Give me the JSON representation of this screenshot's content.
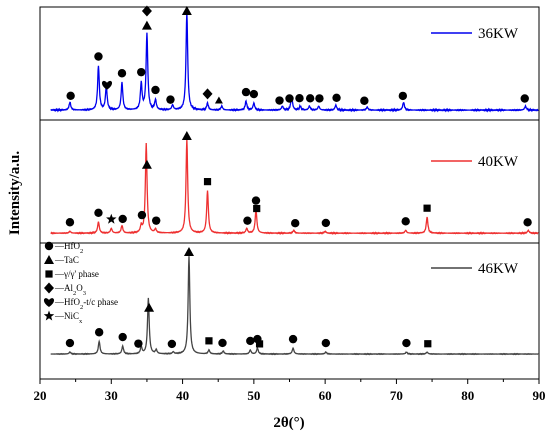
{
  "chart_data": {
    "type": "line",
    "title": "",
    "xlabel": "2θ(°)",
    "ylabel": "Intensity/a.u.",
    "xlim": [
      20,
      90
    ],
    "xticks": [
      "20",
      "30",
      "40",
      "50",
      "60",
      "70",
      "80",
      "90"
    ],
    "xtick_values": [
      20,
      30,
      40,
      50,
      60,
      70,
      80,
      90
    ],
    "yticks": false,
    "grid": false,
    "legend_position": "top-right per panel",
    "series": [
      {
        "name": "36KW",
        "color": "#0000ee",
        "baseline": 0.05,
        "peaks": [
          [
            24.2,
            0.08
          ],
          [
            28.2,
            0.45
          ],
          [
            29.3,
            0.24
          ],
          [
            31.5,
            0.28
          ],
          [
            34.2,
            0.27
          ],
          [
            35.0,
            0.78
          ],
          [
            36.2,
            0.1
          ],
          [
            38.6,
            0.05
          ],
          [
            40.6,
            1.0
          ],
          [
            43.5,
            0.07
          ],
          [
            45.5,
            0.04
          ],
          [
            48.9,
            0.09
          ],
          [
            50.0,
            0.07
          ],
          [
            54.0,
            0.04
          ],
          [
            55.3,
            0.14
          ],
          [
            56.5,
            0.04
          ],
          [
            57.8,
            0.04
          ],
          [
            59.1,
            0.04
          ],
          [
            61.5,
            0.05
          ],
          [
            65.9,
            0.03
          ],
          [
            71.0,
            0.08
          ],
          [
            88.1,
            0.04
          ]
        ]
      },
      {
        "name": "40KW",
        "color": "#ee3030",
        "baseline": 0.03,
        "peaks": [
          [
            24.2,
            0.02
          ],
          [
            28.2,
            0.12
          ],
          [
            30.0,
            0.05
          ],
          [
            31.5,
            0.08
          ],
          [
            34.2,
            0.07
          ],
          [
            34.9,
            0.95
          ],
          [
            36.2,
            0.04
          ],
          [
            40.6,
            1.0
          ],
          [
            43.5,
            0.45
          ],
          [
            49.0,
            0.05
          ],
          [
            50.3,
            0.25
          ],
          [
            55.6,
            0.03
          ],
          [
            60.0,
            0.02
          ],
          [
            71.3,
            0.03
          ],
          [
            74.3,
            0.17
          ],
          [
            88.5,
            0.03
          ]
        ]
      },
      {
        "name": "46KW",
        "color": "#444444",
        "baseline": 0.02,
        "peaks": [
          [
            24.2,
            0.02
          ],
          [
            28.3,
            0.13
          ],
          [
            31.6,
            0.08
          ],
          [
            34.2,
            0.07
          ],
          [
            35.2,
            0.57
          ],
          [
            36.3,
            0.04
          ],
          [
            38.7,
            0.02
          ],
          [
            40.9,
            1.0
          ],
          [
            43.7,
            0.04
          ],
          [
            45.7,
            0.03
          ],
          [
            49.5,
            0.04
          ],
          [
            50.5,
            0.06
          ],
          [
            55.5,
            0.06
          ],
          [
            60.1,
            0.02
          ],
          [
            71.4,
            0.02
          ],
          [
            74.3,
            0.02
          ]
        ]
      }
    ],
    "markers": [
      {
        "panel": 0,
        "symbol": "circle",
        "x": [
          24.3,
          28.2,
          31.5,
          34.2,
          36.2,
          38.3,
          48.9,
          50.0,
          53.6,
          55.0,
          56.4,
          57.9,
          59.2,
          61.6,
          65.5,
          70.9,
          88.0
        ]
      },
      {
        "panel": 0,
        "symbol": "heart",
        "x": [
          29.4
        ]
      },
      {
        "panel": 0,
        "symbol": "diamond",
        "x": [
          35.0,
          43.5
        ]
      },
      {
        "panel": 0,
        "symbol": "triangle",
        "x": [
          35.0,
          40.6
        ]
      },
      {
        "panel": 0,
        "symbol": "triangle-small",
        "x": [
          45.1
        ]
      },
      {
        "panel": 1,
        "symbol": "circle",
        "x": [
          24.2,
          28.2,
          31.6,
          34.3,
          36.3,
          49.1,
          50.3,
          55.8,
          60.1,
          71.3,
          88.4
        ]
      },
      {
        "panel": 1,
        "symbol": "star",
        "x": [
          30.0
        ]
      },
      {
        "panel": 1,
        "symbol": "triangle",
        "x": [
          35.0,
          40.6
        ]
      },
      {
        "panel": 1,
        "symbol": "square",
        "x": [
          43.5,
          50.4,
          74.3
        ]
      },
      {
        "panel": 2,
        "symbol": "circle",
        "x": [
          24.2,
          28.3,
          31.6,
          33.8,
          38.5,
          45.6,
          49.5,
          50.5,
          55.5,
          60.1,
          71.4
        ]
      },
      {
        "panel": 2,
        "symbol": "triangle",
        "x": [
          35.3,
          40.9
        ]
      },
      {
        "panel": 2,
        "symbol": "square",
        "x": [
          43.7,
          50.8,
          74.4
        ]
      }
    ],
    "phase_legend": [
      {
        "symbol": "circle",
        "label": "—HfO",
        "sub": "2",
        "after": ""
      },
      {
        "symbol": "triangle",
        "label": "—TaC",
        "sub": "",
        "after": ""
      },
      {
        "symbol": "square",
        "label": "—γ/γ' phase",
        "sub": "",
        "after": ""
      },
      {
        "symbol": "diamond",
        "label": "—Al",
        "sub": "2",
        "after": "O",
        "sub2": "3"
      },
      {
        "symbol": "heart",
        "label": "—HfO",
        "sub": "2",
        "after": "-t/c phase"
      },
      {
        "symbol": "star",
        "label": "—NiC",
        "sub": "x",
        "after": ""
      }
    ]
  }
}
